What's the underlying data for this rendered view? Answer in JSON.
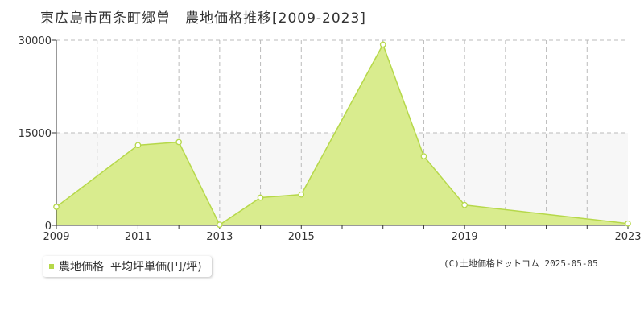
{
  "title": "東広島市西条町郷曽　農地価格推移[2009-2023]",
  "legend": {
    "label": "農地価格",
    "unit": "平均坪単価(円/坪)"
  },
  "credit": "(C)土地価格ドットコム 2025-05-05",
  "colors": {
    "area_fill": "#d9ec8e",
    "line": "#b6d84a",
    "grid": "#bbbbbb",
    "band": "#f7f7f7"
  },
  "chart_data": {
    "type": "area",
    "title": "東広島市西条町郷曽　農地価格推移[2009-2023]",
    "x": [
      2009,
      2010,
      2011,
      2012,
      2013,
      2014,
      2015,
      2016,
      2017,
      2018,
      2019,
      2020,
      2021,
      2022,
      2023
    ],
    "series": [
      {
        "name": "農地価格",
        "values": [
          3000,
          null,
          13000,
          13500,
          100,
          4500,
          5000,
          null,
          29300,
          11200,
          3300,
          null,
          null,
          null,
          300
        ]
      }
    ],
    "x_ticks": [
      2009,
      2011,
      2013,
      2015,
      2019,
      2023
    ],
    "y_ticks": [
      0,
      15000,
      30000
    ],
    "xlim": [
      2009,
      2023
    ],
    "ylim": [
      0,
      30000
    ],
    "grid": true,
    "ylabel": "",
    "xlabel": ""
  }
}
